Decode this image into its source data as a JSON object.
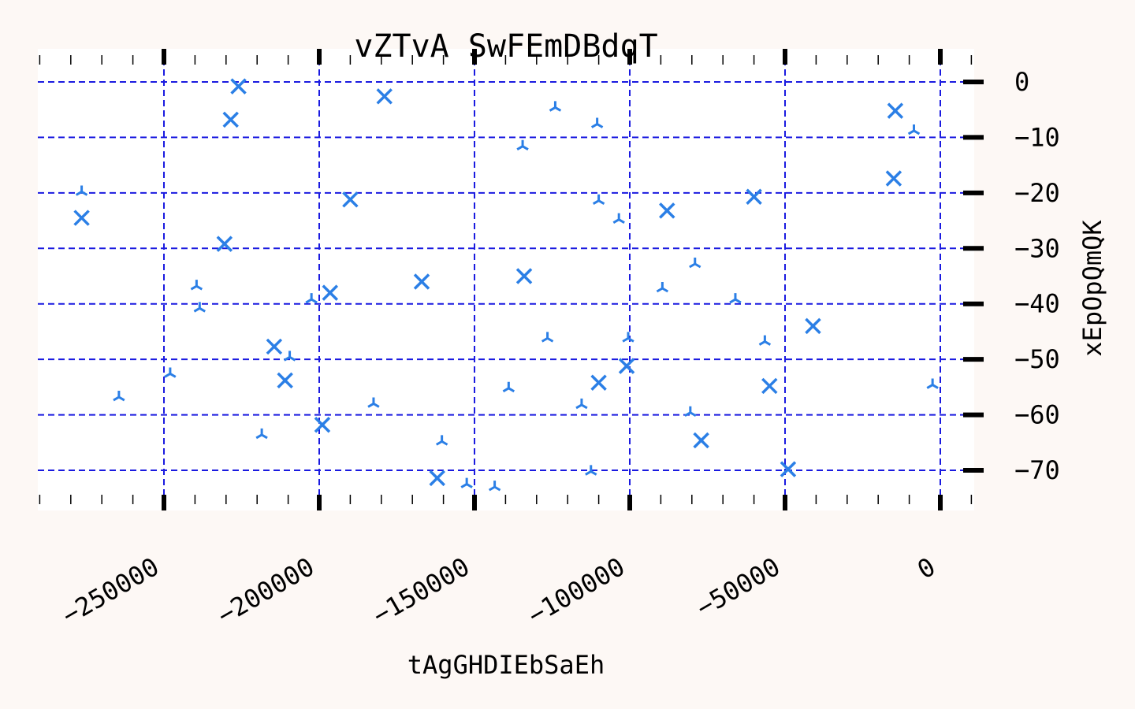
{
  "chart_data": {
    "type": "scatter",
    "title": "vZTvA SwFEmDBdqT",
    "xlabel": "tAgGHDIEbSaEh",
    "ylabel": "xEpOpQmQK",
    "xlim": [
      -290000,
      11000
    ],
    "ylim": [
      -77,
      4
    ],
    "x_ticks": [
      -250000,
      -200000,
      -150000,
      -100000,
      -50000,
      0
    ],
    "x_tick_labels": [
      "−250000",
      "−200000",
      "−150000",
      "−100000",
      "−50000",
      "0"
    ],
    "y_ticks": [
      0,
      -10,
      -20,
      -30,
      -40,
      -50,
      -60,
      -70
    ],
    "y_tick_labels": [
      "0",
      "−10",
      "−20",
      "−30",
      "−40",
      "−50",
      "−60",
      "−70"
    ],
    "y_axis_side": "right",
    "grid": true,
    "colors": {
      "marker": "#2b7fe6",
      "grid": "#1a1ae0",
      "plot_bg": "#ffffff",
      "page_bg": "#fdf8f5"
    },
    "series": [
      {
        "marker": "x",
        "points": [
          [
            -276500,
            -24.5
          ],
          [
            -226000,
            -0.8
          ],
          [
            -228500,
            -6.8
          ],
          [
            -179000,
            -2.6
          ],
          [
            -230500,
            -29.2
          ],
          [
            -190000,
            -21.2
          ],
          [
            -196500,
            -38.0
          ],
          [
            -167000,
            -36.0
          ],
          [
            -134000,
            -35.0
          ],
          [
            -214500,
            -47.7
          ],
          [
            -211000,
            -53.8
          ],
          [
            -199000,
            -61.8
          ],
          [
            -162000,
            -71.4
          ],
          [
            -110000,
            -54.2
          ],
          [
            -101000,
            -51.2
          ],
          [
            -88000,
            -23.2
          ],
          [
            -60000,
            -20.7
          ],
          [
            -55000,
            -54.8
          ],
          [
            -77000,
            -64.6
          ],
          [
            -49000,
            -69.8
          ],
          [
            -41000,
            -44.0
          ],
          [
            -15000,
            -17.4
          ],
          [
            -14500,
            -5.2
          ]
        ]
      },
      {
        "marker": "tri_down",
        "points": [
          [
            -276500,
            -19.8
          ],
          [
            -264500,
            -56.8
          ],
          [
            -248000,
            -52.6
          ],
          [
            -239500,
            -36.8
          ],
          [
            -238500,
            -40.8
          ],
          [
            -218500,
            -63.6
          ],
          [
            -209500,
            -49.6
          ],
          [
            -202500,
            -39.2
          ],
          [
            -182500,
            -58.0
          ],
          [
            -160500,
            -64.8
          ],
          [
            -152500,
            -72.5
          ],
          [
            -143500,
            -73.0
          ],
          [
            -139000,
            -55.2
          ],
          [
            -134500,
            -11.6
          ],
          [
            -124000,
            -4.6
          ],
          [
            -126500,
            -46.2
          ],
          [
            -115500,
            -58.2
          ],
          [
            -112500,
            -70.2
          ],
          [
            -110500,
            -7.6
          ],
          [
            -110000,
            -21.4
          ],
          [
            -103500,
            -24.8
          ],
          [
            -100500,
            -46.2
          ],
          [
            -89500,
            -37.2
          ],
          [
            -79000,
            -32.8
          ],
          [
            -80500,
            -59.6
          ],
          [
            -66000,
            -39.2
          ],
          [
            -56500,
            -46.8
          ],
          [
            -8500,
            -8.8
          ],
          [
            -2500,
            -54.6
          ]
        ]
      }
    ]
  }
}
